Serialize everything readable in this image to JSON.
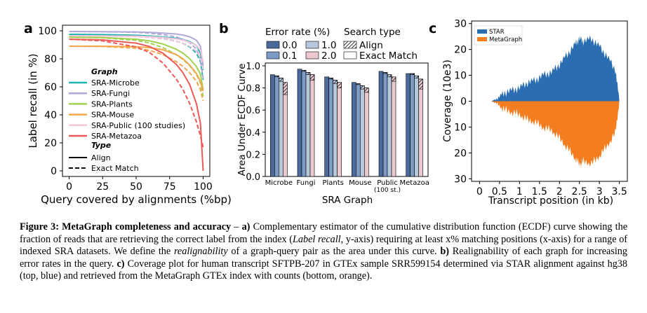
{
  "figure": {
    "panel_a": {
      "letter": "a",
      "legend_graph_title": "Graph",
      "legend_type_title": "Type",
      "type_align": "Align",
      "type_exact": "Exact Match",
      "colors": {
        "SRA-Microbe": "#1fb5b0",
        "SRA-Fungi": "#b2a8d9",
        "SRA-Plants": "#9fd251",
        "SRA-Mouse": "#f3a64a",
        "SRA-Public (100 studies)": "#f6c7dc",
        "SRA-Metazoa": "#ee5a57"
      }
    },
    "panel_b": {
      "letter": "b",
      "error_rate_title": "Error rate (%)",
      "search_type_title": "Search type",
      "error_rates": [
        "0.0",
        "0.1",
        "1.0",
        "2.0"
      ],
      "error_colors": [
        "#4c6a9c",
        "#7e9bc6",
        "#b6c8dc",
        "#ecc9ce"
      ],
      "search_types": [
        "Align",
        "Exact Match"
      ]
    },
    "panel_c": {
      "letter": "c",
      "legend": [
        "STAR",
        "MetaGraph"
      ],
      "colors": {
        "STAR": "#2a6db0",
        "MetaGraph": "#f47d20"
      }
    }
  },
  "chart_data": [
    {
      "type": "line",
      "panel": "a",
      "title": "",
      "xlabel": "Query covered by alignments (%bp)",
      "ylabel": "Label recall (in %)",
      "xlim": [
        -5,
        105
      ],
      "ylim": [
        -4,
        104
      ],
      "xticks": [
        "0",
        "25",
        "50",
        "75",
        "100"
      ],
      "yticks": [
        "0",
        "20",
        "40",
        "60",
        "80",
        "100"
      ],
      "x": [
        0,
        25,
        50,
        60,
        70,
        80,
        85,
        90,
        95,
        98,
        100
      ],
      "series": [
        {
          "name": "SRA-Microbe",
          "type": "Align",
          "values": [
            97.5,
            97.3,
            96.8,
            96.3,
            95.6,
            94.7,
            93.8,
            92.2,
            89.5,
            84,
            72
          ]
        },
        {
          "name": "SRA-Microbe",
          "type": "Exact Match",
          "values": [
            97.5,
            97.2,
            96.4,
            95.6,
            94.4,
            92.6,
            91,
            88.5,
            84,
            78,
            65
          ]
        },
        {
          "name": "SRA-Fungi",
          "type": "Align",
          "values": [
            99.5,
            99.4,
            99.2,
            98.9,
            98.4,
            97.7,
            97,
            95.7,
            93.3,
            89,
            75
          ]
        },
        {
          "name": "SRA-Fungi",
          "type": "Exact Match",
          "values": [
            99.5,
            99.3,
            98.9,
            98.3,
            97.3,
            95.6,
            94,
            91.5,
            87,
            80,
            66
          ]
        },
        {
          "name": "SRA-Plants",
          "type": "Align",
          "values": [
            95.5,
            95.2,
            94,
            92.8,
            90.6,
            86.8,
            84,
            80,
            74.5,
            69,
            58
          ]
        },
        {
          "name": "SRA-Plants",
          "type": "Exact Match",
          "values": [
            95.5,
            95,
            93.2,
            91.3,
            88,
            83,
            79.5,
            75,
            69,
            63,
            53
          ]
        },
        {
          "name": "SRA-Mouse",
          "type": "Align",
          "values": [
            89,
            89,
            88.6,
            88,
            86.5,
            83,
            80,
            75.5,
            69.5,
            64,
            57
          ]
        },
        {
          "name": "SRA-Mouse",
          "type": "Exact Match",
          "values": [
            89,
            88.8,
            87.6,
            86,
            83,
            78,
            74.5,
            70,
            64,
            58,
            50
          ]
        },
        {
          "name": "SRA-Public (100 studies)",
          "type": "Align",
          "values": [
            96.5,
            96.4,
            96.1,
            95.8,
            95.2,
            94.2,
            93.3,
            91.8,
            89.5,
            86,
            78
          ]
        },
        {
          "name": "SRA-Public (100 studies)",
          "type": "Exact Match",
          "values": [
            96.5,
            96.3,
            95.8,
            95.2,
            94.2,
            92.5,
            91,
            89,
            85.5,
            81,
            72
          ]
        },
        {
          "name": "SRA-Metazoa",
          "type": "Align",
          "values": [
            94,
            93.5,
            91.2,
            88.8,
            84,
            76,
            70,
            61.5,
            48,
            34,
            0
          ]
        },
        {
          "name": "SRA-Metazoa",
          "type": "Exact Match",
          "values": [
            94,
            92.8,
            88.5,
            84.5,
            77,
            65.5,
            58,
            48,
            35,
            25,
            17
          ]
        }
      ],
      "legend": "center-left"
    },
    {
      "type": "bar",
      "panel": "b",
      "title": "",
      "xlabel": "SRA Graph",
      "ylabel": "Area Under ECDF Curve",
      "ylim": [
        0,
        1.0
      ],
      "yticks": [
        "0.0",
        "0.2",
        "0.4",
        "0.6",
        "0.8",
        "1.0"
      ],
      "categories": [
        "Microbe",
        "Fungi",
        "Plants",
        "Mouse",
        "Public\n(100 st.)",
        "Metazoa"
      ],
      "category_labels": [
        [
          "Microbe"
        ],
        [
          "Fungi"
        ],
        [
          "Plants"
        ],
        [
          "Mouse"
        ],
        [
          "Public",
          "(100 st.)"
        ],
        [
          "Metazoa"
        ]
      ],
      "series": [
        {
          "name": "0.0 Align",
          "values": [
            0.92,
            0.97,
            0.9,
            0.85,
            0.95,
            0.93
          ]
        },
        {
          "name": "0.0 Exact Match",
          "values": [
            0.92,
            0.97,
            0.9,
            0.85,
            0.95,
            0.93
          ]
        },
        {
          "name": "0.1 Align",
          "values": [
            0.91,
            0.96,
            0.89,
            0.84,
            0.94,
            0.93
          ]
        },
        {
          "name": "0.1 Exact Match",
          "values": [
            0.9,
            0.95,
            0.88,
            0.83,
            0.93,
            0.92
          ]
        },
        {
          "name": "1.0 Align",
          "values": [
            0.89,
            0.94,
            0.87,
            0.82,
            0.92,
            0.91
          ]
        },
        {
          "name": "1.0 Exact Match",
          "values": [
            0.86,
            0.92,
            0.84,
            0.79,
            0.9,
            0.89
          ]
        },
        {
          "name": "2.0 Align",
          "values": [
            0.85,
            0.92,
            0.85,
            0.8,
            0.9,
            0.88
          ]
        },
        {
          "name": "2.0 Exact Match",
          "values": [
            0.74,
            0.87,
            0.8,
            0.76,
            0.86,
            0.79
          ]
        }
      ],
      "legend": "top"
    },
    {
      "type": "area",
      "panel": "c",
      "title": "",
      "xlabel": "Transcript position (in kb)",
      "ylabel": "Coverage (10e3)",
      "xlim": [
        -0.2,
        3.7
      ],
      "ylim": [
        -31,
        31
      ],
      "xticks": [
        "0",
        "0.5",
        "1",
        "1.5",
        "2",
        "2.5",
        "3",
        "3.5"
      ],
      "yticks": [
        "30",
        "20",
        "10",
        "0",
        "10",
        "20",
        "30"
      ],
      "x": [
        0,
        0.3,
        0.45,
        0.6,
        0.8,
        1.0,
        1.2,
        1.4,
        1.6,
        1.8,
        2.0,
        2.2,
        2.4,
        2.5,
        2.6,
        2.8,
        3.0,
        3.2,
        3.4,
        3.5
      ],
      "series": [
        {
          "name": "STAR",
          "values": [
            0,
            0,
            1,
            3,
            4,
            5,
            7,
            8,
            10,
            11,
            14,
            18,
            22,
            24,
            23,
            24,
            21,
            17,
            12,
            0
          ]
        },
        {
          "name": "MetaGraph",
          "values": [
            0,
            0,
            1,
            3,
            4,
            5,
            7,
            8,
            10,
            11,
            14,
            18,
            22,
            24,
            23,
            24,
            21,
            17,
            12,
            0
          ]
        }
      ],
      "legend": "top-left"
    }
  ],
  "caption": {
    "label": "Figure 3:",
    "heading": "MetaGraph completeness and accuracy",
    "dash": " – ",
    "a_label": "a)",
    "a_text_1": " Complementary estimator of the cumulative distribution function (ECDF) curve showing the fraction of reads that are retrieving the correct label from the index (",
    "a_italic_1": "Label recall",
    "a_text_2": ", y-axis) requiring at least x% matching positions (x-axis) for a range of indexed SRA datasets. We define the ",
    "a_italic_2": "realignability",
    "a_text_3": " of a graph-query pair as the area under this curve. ",
    "b_label": "b)",
    "b_text": " Realignability of each graph for increasing error rates in the query. ",
    "c_label": "c)",
    "c_text": " Coverage plot for human transcript SFTPB-207 in GTEx sample SRR599154 determined via STAR alignment against hg38 (top, blue) and retrieved from the MetaGraph GTEx index with counts (bottom, orange)."
  }
}
